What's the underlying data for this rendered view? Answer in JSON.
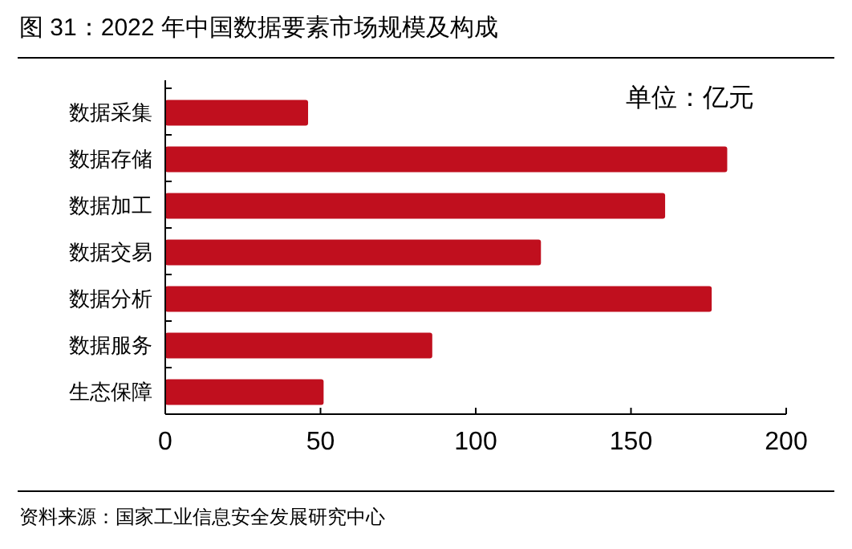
{
  "chart_data": {
    "type": "bar",
    "orientation": "horizontal",
    "title": "图 31：2022 年中国数据要素市场规模及构成",
    "categories": [
      "数据采集",
      "数据存储",
      "数据加工",
      "数据交易",
      "数据分析",
      "数据服务",
      "生态保障"
    ],
    "values": [
      46,
      181,
      161,
      121,
      176,
      86,
      51
    ],
    "color": "#c00f1e",
    "xlim": [
      0,
      200
    ],
    "xticks": [
      0,
      50,
      100,
      150,
      200
    ],
    "annotations": [
      "单位：亿元",
      "资料来源：国家工业信息安全发展研究中心"
    ]
  }
}
